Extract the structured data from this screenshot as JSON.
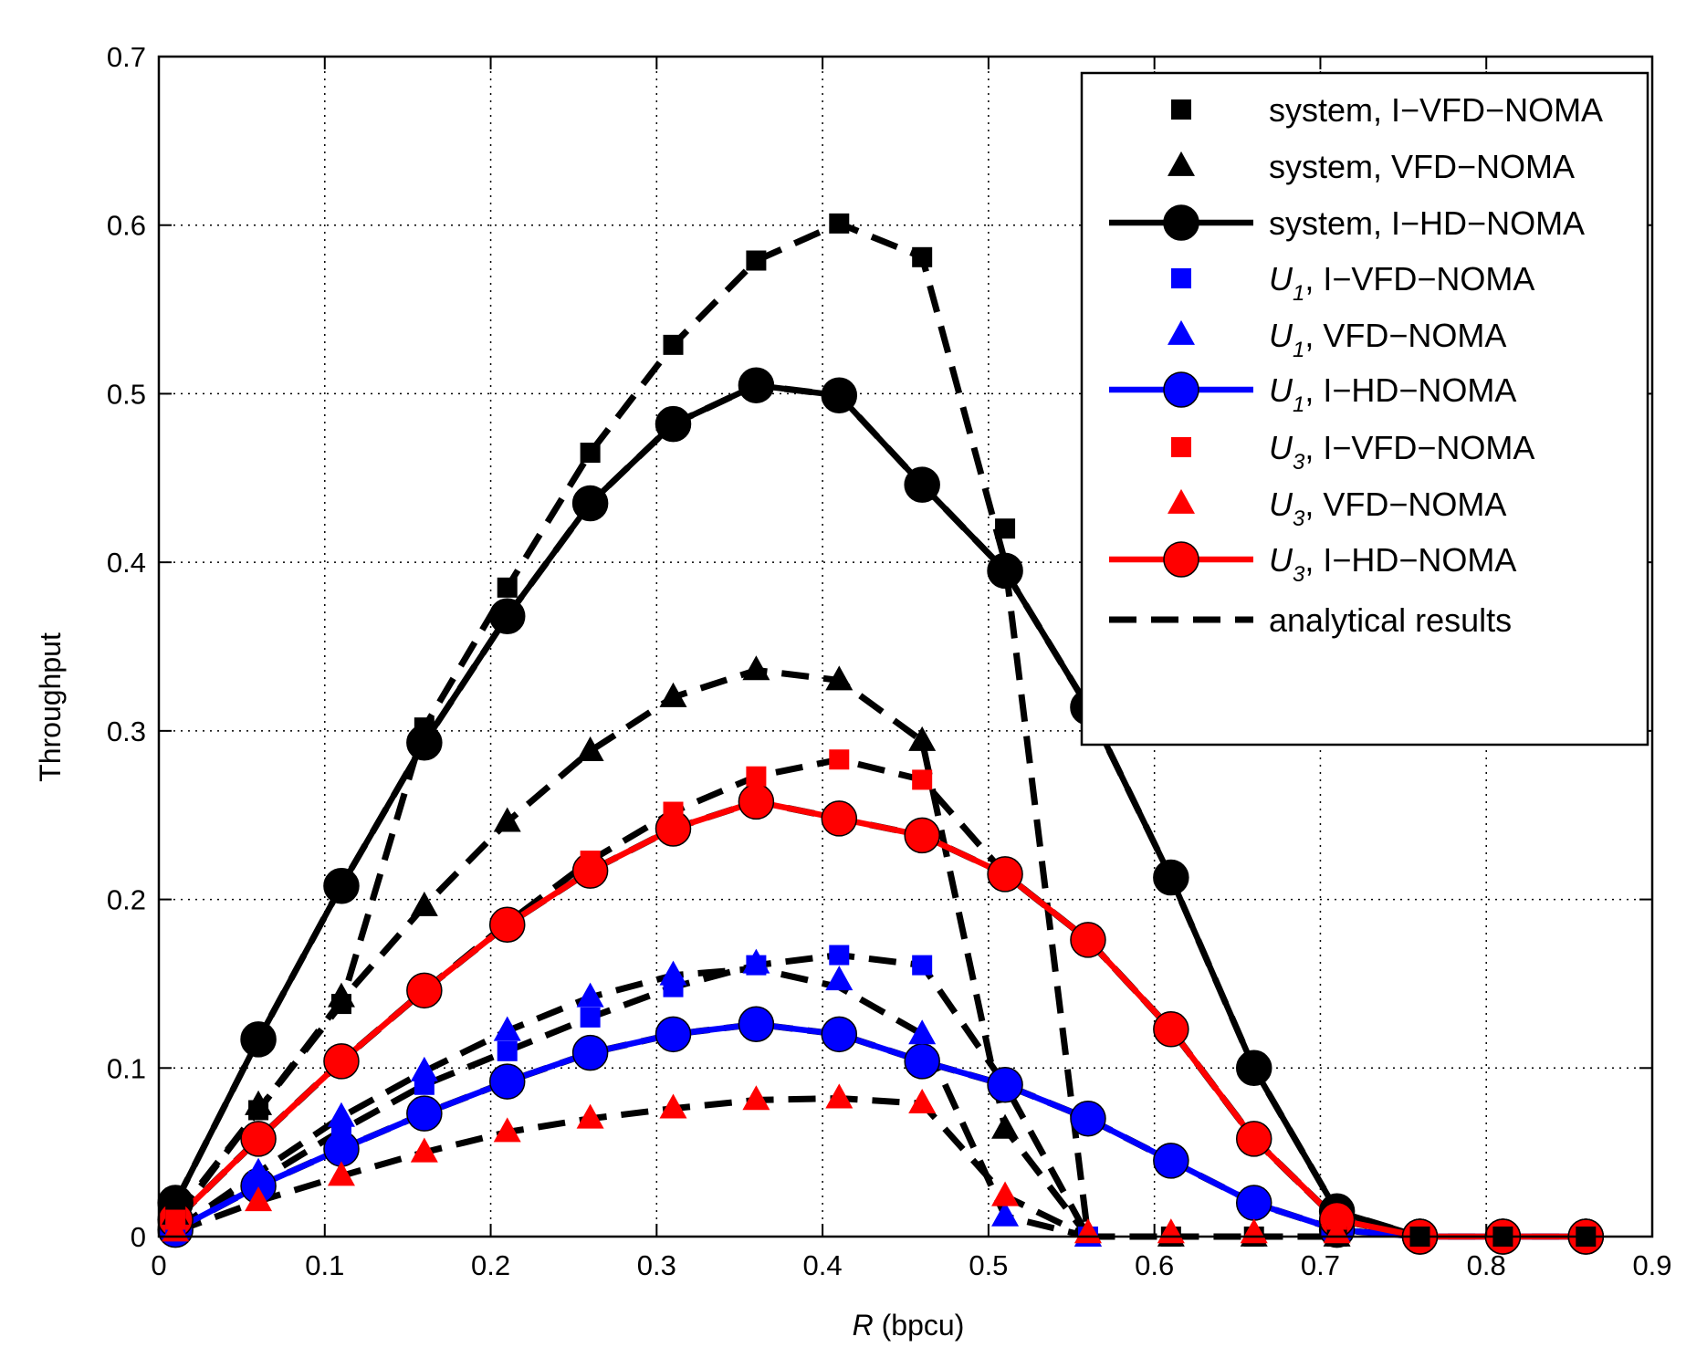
{
  "chart_data": {
    "type": "line",
    "title": "",
    "xlabel_var": "R",
    "xlabel_unit": " (bpcu)",
    "ylabel": "Throughput",
    "xlim": [
      0,
      0.9
    ],
    "ylim": [
      0,
      0.7
    ],
    "xticks": [
      0,
      0.1,
      0.2,
      0.3,
      0.4,
      0.5,
      0.6,
      0.7,
      0.8,
      0.9
    ],
    "xtick_labels": [
      "0",
      "0.1",
      "0.2",
      "0.3",
      "0.4",
      "0.5",
      "0.6",
      "0.7",
      "0.8",
      "0.9"
    ],
    "yticks": [
      0,
      0.1,
      0.2,
      0.3,
      0.4,
      0.5,
      0.6,
      0.7
    ],
    "ytick_labels": [
      "0",
      "0.1",
      "0.2",
      "0.3",
      "0.4",
      "0.5",
      "0.6",
      "0.7"
    ],
    "grid": true,
    "legend_position": "top-right",
    "colors": {
      "system": "#000000",
      "U1": "#0000ff",
      "U3": "#ff0000",
      "analytical": "#000000"
    },
    "series": [
      {
        "name": "system, I-HD-NOMA",
        "user": "system",
        "scheme": "I-HD-NOMA",
        "color": "#000000",
        "marker": "circle",
        "line": "solid",
        "x": [
          0.01,
          0.06,
          0.11,
          0.16,
          0.21,
          0.26,
          0.31,
          0.36,
          0.41,
          0.46,
          0.51,
          0.56,
          0.61,
          0.66,
          0.71,
          0.76,
          0.81,
          0.86
        ],
        "y": [
          0.02,
          0.117,
          0.208,
          0.293,
          0.368,
          0.435,
          0.482,
          0.505,
          0.499,
          0.446,
          0.395,
          0.314,
          0.213,
          0.1,
          0.015,
          0.0,
          0.0,
          0.0
        ]
      },
      {
        "name": "U1, I-HD-NOMA",
        "user": "U1",
        "scheme": "I-HD-NOMA",
        "color": "#0000ff",
        "marker": "circle",
        "line": "solid",
        "x": [
          0.01,
          0.06,
          0.11,
          0.16,
          0.21,
          0.26,
          0.31,
          0.36,
          0.41,
          0.46,
          0.51,
          0.56,
          0.61,
          0.66,
          0.71,
          0.76,
          0.81,
          0.86
        ],
        "y": [
          0.004,
          0.03,
          0.052,
          0.073,
          0.092,
          0.109,
          0.12,
          0.126,
          0.12,
          0.104,
          0.09,
          0.07,
          0.045,
          0.02,
          0.004,
          0.0,
          0.0,
          0.0
        ]
      },
      {
        "name": "U3, I-HD-NOMA",
        "user": "U3",
        "scheme": "I-HD-NOMA",
        "color": "#ff0000",
        "marker": "circle",
        "line": "solid",
        "x": [
          0.01,
          0.06,
          0.11,
          0.16,
          0.21,
          0.26,
          0.31,
          0.36,
          0.41,
          0.46,
          0.51,
          0.56,
          0.61,
          0.66,
          0.71,
          0.76,
          0.81,
          0.86
        ],
        "y": [
          0.01,
          0.058,
          0.104,
          0.146,
          0.185,
          0.217,
          0.242,
          0.258,
          0.248,
          0.238,
          0.215,
          0.176,
          0.123,
          0.058,
          0.01,
          0.0,
          0.0,
          0.0
        ]
      },
      {
        "name": "system, I-VFD-NOMA",
        "user": "system",
        "scheme": "I-VFD-NOMA",
        "color": "#000000",
        "marker": "square",
        "line": "none",
        "x": [
          0.01,
          0.06,
          0.11,
          0.16,
          0.21,
          0.26,
          0.31,
          0.36,
          0.41,
          0.46,
          0.51,
          0.56,
          0.61,
          0.66,
          0.71,
          0.76,
          0.81,
          0.86
        ],
        "y": [
          0.015,
          0.075,
          0.138,
          0.302,
          0.385,
          0.465,
          0.529,
          0.579,
          0.601,
          0.581,
          0.42,
          0.0,
          0.0,
          0.0,
          0.0,
          0.0,
          0.0,
          0.0
        ]
      },
      {
        "name": "system, VFD-NOMA",
        "user": "system",
        "scheme": "VFD-NOMA",
        "color": "#000000",
        "marker": "triangle",
        "line": "none",
        "x": [
          0.01,
          0.06,
          0.11,
          0.16,
          0.21,
          0.26,
          0.31,
          0.36,
          0.41,
          0.46,
          0.51,
          0.56,
          0.61,
          0.66,
          0.71
        ],
        "y": [
          0.013,
          0.078,
          0.142,
          0.196,
          0.246,
          0.288,
          0.32,
          0.336,
          0.33,
          0.294,
          0.064,
          0.0,
          0.0,
          0.0,
          0.0
        ]
      },
      {
        "name": "U1, I-VFD-NOMA",
        "user": "U1",
        "scheme": "I-VFD-NOMA",
        "color": "#0000ff",
        "marker": "square",
        "line": "none",
        "x": [
          0.01,
          0.06,
          0.11,
          0.16,
          0.21,
          0.26,
          0.31,
          0.36,
          0.41,
          0.46,
          0.51,
          0.56
        ],
        "y": [
          0.003,
          0.033,
          0.063,
          0.09,
          0.11,
          0.13,
          0.148,
          0.161,
          0.167,
          0.161,
          0.09,
          0.0
        ]
      },
      {
        "name": "U1, VFD-NOMA",
        "user": "U1",
        "scheme": "VFD-NOMA",
        "color": "#0000ff",
        "marker": "triangle",
        "line": "none",
        "x": [
          0.01,
          0.06,
          0.11,
          0.16,
          0.21,
          0.26,
          0.31,
          0.36,
          0.41,
          0.46,
          0.51,
          0.56
        ],
        "y": [
          0.004,
          0.038,
          0.071,
          0.098,
          0.122,
          0.142,
          0.155,
          0.162,
          0.152,
          0.12,
          0.012,
          0.0
        ]
      },
      {
        "name": "U3, I-VFD-NOMA",
        "user": "U3",
        "scheme": "I-VFD-NOMA",
        "color": "#ff0000",
        "marker": "square",
        "line": "none",
        "x": [
          0.01,
          0.06,
          0.11,
          0.16,
          0.21,
          0.26,
          0.31,
          0.36,
          0.41,
          0.46,
          0.51,
          0.56,
          0.61,
          0.66,
          0.71
        ],
        "y": [
          0.01,
          0.058,
          0.104,
          0.146,
          0.186,
          0.223,
          0.252,
          0.273,
          0.283,
          0.271,
          0.215,
          0.176,
          0.123,
          0.058,
          0.01
        ]
      },
      {
        "name": "U3, VFD-NOMA",
        "user": "U3",
        "scheme": "VFD-NOMA",
        "color": "#ff0000",
        "marker": "triangle",
        "line": "none",
        "x": [
          0.01,
          0.06,
          0.11,
          0.16,
          0.21,
          0.26,
          0.31,
          0.36,
          0.41,
          0.46,
          0.51,
          0.56,
          0.61,
          0.66,
          0.71
        ],
        "y": [
          0.003,
          0.021,
          0.036,
          0.05,
          0.062,
          0.07,
          0.076,
          0.081,
          0.082,
          0.079,
          0.024,
          0.002,
          0.002,
          0.002,
          0.002
        ]
      }
    ],
    "analytical_curves": [
      {
        "name": "analytical, system I-VFD-NOMA",
        "x": [
          0.01,
          0.06,
          0.11,
          0.16,
          0.21,
          0.26,
          0.31,
          0.36,
          0.41,
          0.46,
          0.51,
          0.56,
          0.61,
          0.66,
          0.71
        ],
        "y": [
          0.012,
          0.075,
          0.138,
          0.302,
          0.385,
          0.465,
          0.529,
          0.579,
          0.601,
          0.581,
          0.4,
          0.0,
          0.0,
          0.0,
          0.0
        ]
      },
      {
        "name": "analytical, system VFD-NOMA",
        "x": [
          0.01,
          0.06,
          0.11,
          0.16,
          0.21,
          0.26,
          0.31,
          0.36,
          0.41,
          0.46,
          0.51,
          0.56
        ],
        "y": [
          0.01,
          0.075,
          0.14,
          0.196,
          0.246,
          0.288,
          0.32,
          0.336,
          0.33,
          0.294,
          0.064,
          0.0
        ]
      },
      {
        "name": "analytical, system I-HD-NOMA",
        "x": [
          0.01,
          0.06,
          0.11,
          0.16,
          0.21,
          0.26,
          0.31,
          0.36,
          0.41,
          0.46,
          0.51,
          0.56,
          0.61,
          0.66,
          0.71,
          0.76,
          0.81,
          0.86
        ],
        "y": [
          0.02,
          0.117,
          0.208,
          0.293,
          0.368,
          0.435,
          0.482,
          0.505,
          0.499,
          0.446,
          0.395,
          0.314,
          0.213,
          0.1,
          0.015,
          0.0,
          0.0,
          0.0
        ]
      },
      {
        "name": "analytical, U3 I-VFD-NOMA",
        "x": [
          0.01,
          0.06,
          0.11,
          0.16,
          0.21,
          0.26,
          0.31,
          0.36,
          0.41,
          0.46,
          0.51,
          0.56,
          0.61,
          0.66,
          0.71,
          0.76
        ],
        "y": [
          0.01,
          0.058,
          0.104,
          0.146,
          0.186,
          0.223,
          0.252,
          0.273,
          0.283,
          0.271,
          0.215,
          0.176,
          0.123,
          0.058,
          0.01,
          0.0
        ]
      },
      {
        "name": "analytical, U3 I-HD-NOMA",
        "x": [
          0.01,
          0.06,
          0.11,
          0.16,
          0.21,
          0.26,
          0.31,
          0.36,
          0.41,
          0.46,
          0.51,
          0.56,
          0.61,
          0.66,
          0.71,
          0.76
        ],
        "y": [
          0.01,
          0.058,
          0.104,
          0.146,
          0.185,
          0.217,
          0.242,
          0.258,
          0.248,
          0.238,
          0.215,
          0.176,
          0.123,
          0.058,
          0.01,
          0.0
        ]
      },
      {
        "name": "analytical, U1 I-VFD-NOMA",
        "x": [
          0.01,
          0.06,
          0.11,
          0.16,
          0.21,
          0.26,
          0.31,
          0.36,
          0.41,
          0.46,
          0.51,
          0.56
        ],
        "y": [
          0.003,
          0.033,
          0.063,
          0.09,
          0.11,
          0.13,
          0.148,
          0.161,
          0.167,
          0.161,
          0.09,
          0.0
        ]
      },
      {
        "name": "analytical, U1 VFD-NOMA",
        "x": [
          0.01,
          0.06,
          0.11,
          0.16,
          0.21,
          0.26,
          0.31,
          0.36,
          0.41,
          0.46,
          0.51,
          0.56
        ],
        "y": [
          0.004,
          0.038,
          0.071,
          0.098,
          0.122,
          0.142,
          0.155,
          0.159,
          0.148,
          0.12,
          0.012,
          0.0
        ]
      },
      {
        "name": "analytical, U1 I-HD-NOMA",
        "x": [
          0.01,
          0.06,
          0.11,
          0.16,
          0.21,
          0.26,
          0.31,
          0.36,
          0.41,
          0.46,
          0.51,
          0.56,
          0.61,
          0.66,
          0.71,
          0.76
        ],
        "y": [
          0.004,
          0.03,
          0.052,
          0.073,
          0.092,
          0.109,
          0.12,
          0.126,
          0.12,
          0.104,
          0.09,
          0.07,
          0.045,
          0.02,
          0.004,
          0.0
        ]
      },
      {
        "name": "analytical, U3 VFD-NOMA",
        "x": [
          0.01,
          0.06,
          0.11,
          0.16,
          0.21,
          0.26,
          0.31,
          0.36,
          0.41,
          0.46,
          0.51,
          0.56
        ],
        "y": [
          0.003,
          0.021,
          0.036,
          0.05,
          0.062,
          0.07,
          0.076,
          0.081,
          0.082,
          0.079,
          0.024,
          0.0
        ]
      }
    ],
    "legend": [
      {
        "id": "sys-ivfd",
        "user": "system",
        "user_sub": "",
        "text": ", I−VFD−NOMA",
        "full": "system, I−VFD−NOMA",
        "color": "#000000",
        "marker": "square",
        "line": "none"
      },
      {
        "id": "sys-vfd",
        "user": "system",
        "user_sub": "",
        "text": ", VFD−NOMA",
        "full": "system, VFD−NOMA",
        "color": "#000000",
        "marker": "triangle",
        "line": "none"
      },
      {
        "id": "sys-ihd",
        "user": "system",
        "user_sub": "",
        "text": ", I−HD−NOMA",
        "full": "system, I−HD−NOMA",
        "color": "#000000",
        "marker": "circle",
        "line": "solid"
      },
      {
        "id": "u1-ivfd",
        "user": "U",
        "user_sub": "1",
        "text": ", I−VFD−NOMA",
        "full": "U1, I−VFD−NOMA",
        "color": "#0000ff",
        "marker": "square",
        "line": "none"
      },
      {
        "id": "u1-vfd",
        "user": "U",
        "user_sub": "1",
        "text": ", VFD−NOMA",
        "full": "U1, VFD−NOMA",
        "color": "#0000ff",
        "marker": "triangle",
        "line": "none"
      },
      {
        "id": "u1-ihd",
        "user": "U",
        "user_sub": "1",
        "text": ", I−HD−NOMA",
        "full": "U1, I−HD−NOMA",
        "color": "#0000ff",
        "marker": "circle",
        "line": "solid"
      },
      {
        "id": "u3-ivfd",
        "user": "U",
        "user_sub": "3",
        "text": ", I−VFD−NOMA",
        "full": "U3, I−VFD−NOMA",
        "color": "#ff0000",
        "marker": "square",
        "line": "none"
      },
      {
        "id": "u3-vfd",
        "user": "U",
        "user_sub": "3",
        "text": ", VFD−NOMA",
        "full": "U3, VFD−NOMA",
        "color": "#ff0000",
        "marker": "triangle",
        "line": "none"
      },
      {
        "id": "u3-ihd",
        "user": "U",
        "user_sub": "3",
        "text": ", I−HD−NOMA",
        "full": "U3, I−HD−NOMA",
        "color": "#ff0000",
        "marker": "circle",
        "line": "solid"
      },
      {
        "id": "analytical",
        "user": "",
        "user_sub": "",
        "text": "analytical results",
        "full": "analytical results",
        "color": "#000000",
        "marker": "none",
        "line": "dashed"
      }
    ]
  }
}
